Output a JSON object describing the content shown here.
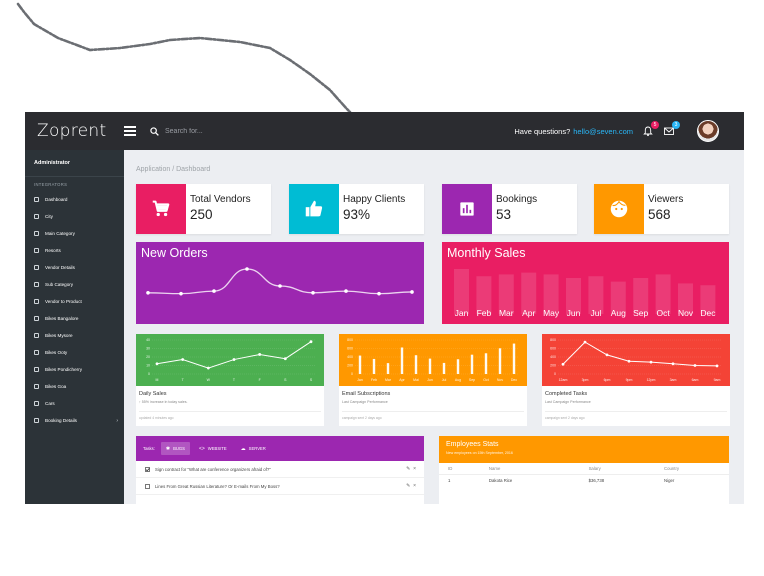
{
  "brand": "Zoprent",
  "search": {
    "placeholder": "Search for..."
  },
  "header": {
    "question": "Have questions?",
    "email": "hello@seven.com",
    "notifications_count": "5",
    "messages_count": "3"
  },
  "sidebar": {
    "user": "Administrator",
    "section": "INTEGRATORS",
    "items": [
      {
        "label": "Dashboard",
        "icon": "home-icon"
      },
      {
        "label": "City",
        "icon": "layers-icon"
      },
      {
        "label": "Main Category",
        "icon": "layers-icon"
      },
      {
        "label": "Resorts",
        "icon": "layers-icon"
      },
      {
        "label": "Vendor Details",
        "icon": "layers-icon"
      },
      {
        "label": "Sub Category",
        "icon": "layers-icon"
      },
      {
        "label": "Vendor to Product",
        "icon": "layers-icon"
      },
      {
        "label": "Bikes Bangalore",
        "icon": "layers-icon"
      },
      {
        "label": "Bikes Mysore",
        "icon": "layers-icon"
      },
      {
        "label": "Bikes Ooty",
        "icon": "layers-icon"
      },
      {
        "label": "Bikes Pondicherry",
        "icon": "layers-icon"
      },
      {
        "label": "Bikes Goa",
        "icon": "layers-icon"
      },
      {
        "label": "Cars",
        "icon": "layers-icon"
      },
      {
        "label": "Booking Details",
        "icon": "layers-icon",
        "has_submenu": true
      }
    ]
  },
  "breadcrumb": "Application / Dashboard",
  "stats": [
    {
      "label": "Total Vendors",
      "value": "250",
      "color": "#e91e63",
      "icon": "cart-icon"
    },
    {
      "label": "Happy Clients",
      "value": "93%",
      "color": "#00bcd4",
      "icon": "thumbs-up-icon"
    },
    {
      "label": "Bookings",
      "value": "53",
      "color": "#9c27b0",
      "icon": "bar-chart-icon"
    },
    {
      "label": "Viewers",
      "value": "568",
      "color": "#ff9800",
      "icon": "face-icon"
    }
  ],
  "new_orders": {
    "title": "New Orders",
    "color": "#9c27b0",
    "values": [
      32,
      31,
      34,
      60,
      40,
      32,
      34,
      31,
      33
    ]
  },
  "monthly_sales": {
    "title": "Monthly Sales",
    "color": "#e91e63",
    "months": [
      "Jan",
      "Feb",
      "Mar",
      "Apr",
      "May",
      "Jun",
      "Jul",
      "Aug",
      "Sep",
      "Oct",
      "Nov",
      "Dec"
    ],
    "values": [
      50,
      42,
      44,
      46,
      44,
      40,
      42,
      36,
      40,
      44,
      34,
      32
    ]
  },
  "daily_sales": {
    "title": "Daily Sales",
    "desc": "↑ 55% increase in today sales.",
    "footer": "updated 4 minutes ago",
    "color": "#4caf50",
    "labels": [
      "M",
      "T",
      "W",
      "T",
      "F",
      "S",
      "S"
    ],
    "yticks": [
      "40",
      "30",
      "20",
      "10",
      "0"
    ],
    "values": [
      12,
      17,
      7,
      17,
      23,
      18,
      38
    ]
  },
  "email_subs": {
    "title": "Email Subscriptions",
    "desc": "Last Campaign Performance",
    "footer": "campaign sent 2 days ago",
    "color": "#ff9800",
    "labels": [
      "Jan",
      "Feb",
      "Mar",
      "Apr",
      "Mai",
      "Jun",
      "Jul",
      "Aug",
      "Sep",
      "Oct",
      "Nov",
      "Dec"
    ],
    "yticks": [
      "800",
      "600",
      "400",
      "200",
      "0"
    ],
    "values": [
      542,
      443,
      320,
      780,
      553,
      453,
      326,
      434,
      568,
      610,
      756,
      895
    ]
  },
  "completed_tasks": {
    "title": "Completed Tasks",
    "desc": "Last Campaign Performance",
    "footer": "campaign sent 2 days ago",
    "color": "#f44336",
    "labels": [
      "12am",
      "3pm",
      "6pm",
      "9pm",
      "12pm",
      "3am",
      "6am",
      "9am"
    ],
    "yticks": [
      "800",
      "600",
      "400",
      "200",
      "0"
    ],
    "values": [
      230,
      750,
      450,
      300,
      280,
      240,
      200,
      190
    ]
  },
  "tasks": {
    "prefix": "Tasks:",
    "tabs": [
      {
        "label": "BUGS",
        "icon": "bug-icon",
        "active": true
      },
      {
        "label": "WEBSITE",
        "icon": "code-icon",
        "active": false
      },
      {
        "label": "SERVER",
        "icon": "cloud-icon",
        "active": false
      }
    ],
    "rows": [
      {
        "text": "Sign contract for \"What are conference organizers afraid of?\"",
        "checked": true
      },
      {
        "text": "Lines From Great Russian Literature? Or E-mails From My Boss?",
        "checked": false
      }
    ]
  },
  "employees": {
    "title": "Employees Stats",
    "subtitle": "New employees on 15th September, 2016",
    "columns": [
      "ID",
      "Name",
      "Salary",
      "Country"
    ],
    "rows": [
      [
        "1",
        "Dakota Rice",
        "$36,738",
        "Niger"
      ]
    ]
  }
}
